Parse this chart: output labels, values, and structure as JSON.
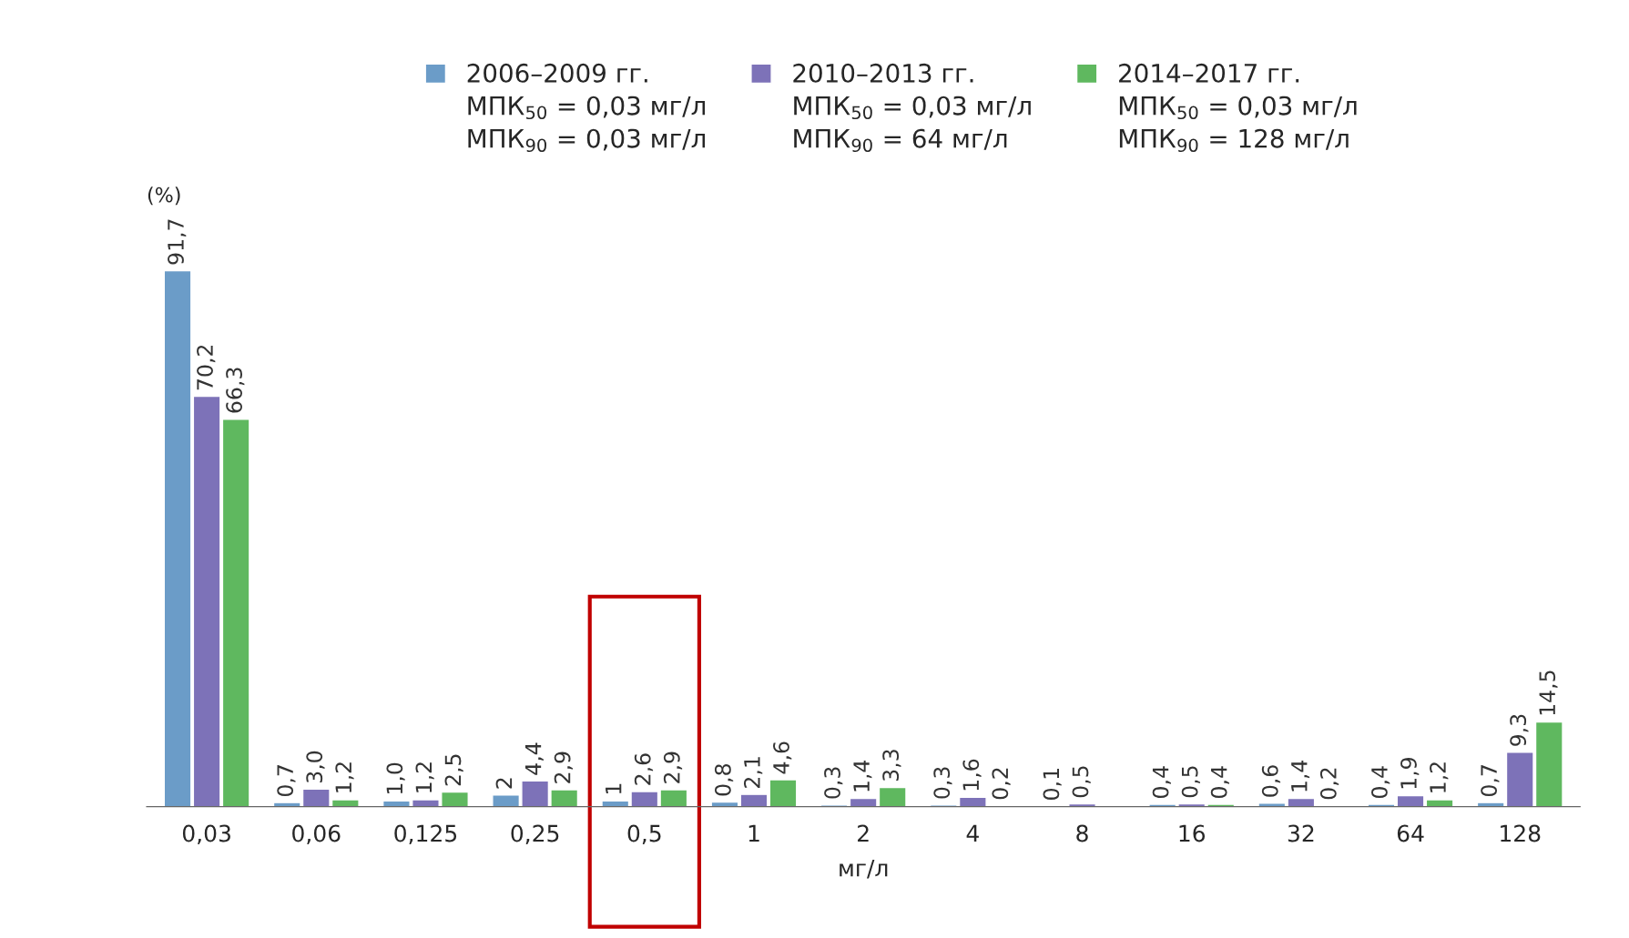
{
  "chart_data": {
    "type": "bar",
    "xlabel": "мг/л",
    "ylabel": "(%)",
    "categories": [
      "0,03",
      "0,06",
      "0,125",
      "0,25",
      "0,5",
      "1",
      "2",
      "4",
      "8",
      "16",
      "32",
      "64",
      "128"
    ],
    "series": [
      {
        "name": "2006–2009 гг.",
        "color": "#6b9cc8",
        "values": [
          91.7,
          0.7,
          1.0,
          2,
          1,
          0.8,
          0.3,
          0.3,
          0.1,
          0.4,
          0.6,
          0.4,
          0.7
        ],
        "value_labels": [
          "91,7",
          "0,7",
          "1,0",
          "2",
          "1",
          "0,8",
          "0,3",
          "0,3",
          "0,1",
          "0,4",
          "0,6",
          "0,4",
          "0,7"
        ]
      },
      {
        "name": "2010–2013 гг.",
        "color": "#7d72b8",
        "values": [
          70.2,
          3.0,
          1.2,
          4.4,
          2.6,
          2.1,
          1.4,
          1.6,
          0.5,
          0.5,
          1.4,
          1.9,
          9.3
        ],
        "value_labels": [
          "70,2",
          "3,0",
          "1,2",
          "4,4",
          "2,6",
          "2,1",
          "1,4",
          "1,6",
          "0,5",
          "0,5",
          "1,4",
          "1,9",
          "9,3"
        ]
      },
      {
        "name": "2014–2017 гг.",
        "color": "#5fb85f",
        "values": [
          66.3,
          1.2,
          2.5,
          2.9,
          2.9,
          4.6,
          3.3,
          0.2,
          null,
          0.4,
          0.2,
          1.2,
          14.5
        ],
        "value_labels": [
          "66,3",
          "1,2",
          "2,5",
          "2,9",
          "2,9",
          "4,6",
          "3,3",
          "0,2",
          null,
          "0,4",
          "0,2",
          "1,2",
          "14,5"
        ]
      }
    ],
    "annotations": [
      "МПК$_{50}$ = 0,03 мг/л",
      "МПК$_{90}$ = 0,03 мг/л",
      "МПК$_{50}$ = 0,03 мг/л",
      "МПК$_{90}$ = 64 мг/л",
      "МПК$_{50}$ = 0,03 мг/л",
      "МПК$_{90}$ = 128 мг/л"
    ],
    "legend": "top",
    "grid": false
  }
}
